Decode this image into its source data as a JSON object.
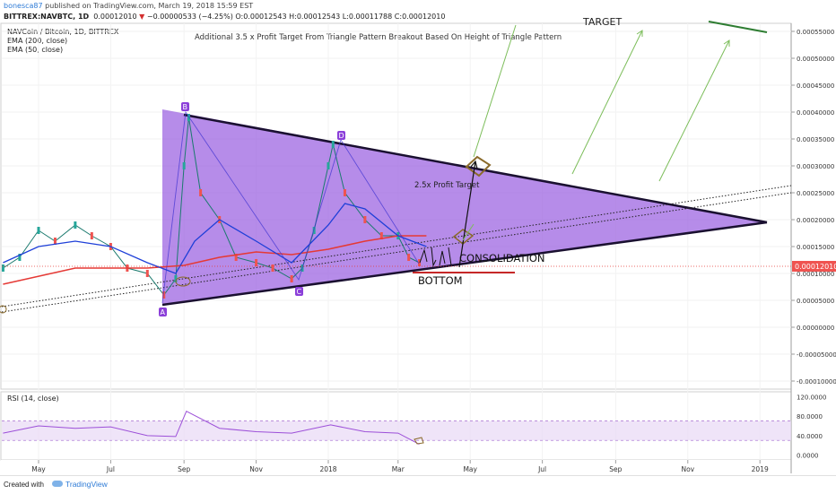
{
  "header": {
    "user": "bonesca87",
    "published": " published on TradingView.com, March 19, 2018 15:59 EST",
    "symbol": "BITTREX:NAVBTC, 1D",
    "last": "0.00012010",
    "arrow": "▼",
    "change": "−0.00000533 (−4.25%)",
    "open": "O:0.00012543",
    "high": "H:0.00012543",
    "low": "L:0.00011788",
    "close": "C:0.00012010"
  },
  "legend": {
    "title": "NAVCoin / Bitcoin, 1D, BITTREX",
    "ema200": "EMA (200, close)",
    "ema50": "EMA (50, close)"
  },
  "chart_data": {
    "type": "line",
    "title": "Additional 3.5 x Profit Target From Triangle Pattern Breakout Based On Height of Triangle Pattern",
    "x_labels": [
      "May",
      "Jul",
      "Sep",
      "Nov",
      "2018",
      "Mar",
      "May",
      "Jul",
      "Sep",
      "Nov",
      "2019"
    ],
    "y_ticks": [
      "0.00055000",
      "0.00050000",
      "0.00045000",
      "0.00040000",
      "0.00035000",
      "0.00030000",
      "0.00025000",
      "0.00020000",
      "0.00015000",
      "0.00010000",
      "0.00005000",
      "0.00000000",
      "-0.00005000",
      "-0.00010000"
    ],
    "ylim": [
      -0.000115,
      0.000565
    ],
    "last_price_label": "0.00012010",
    "series": [
      {
        "name": "NAVBTC close",
        "color": "#26a69a",
        "x": [
          "2017-04-01",
          "2017-04-15",
          "2017-05-01",
          "2017-05-15",
          "2017-06-01",
          "2017-06-15",
          "2017-07-01",
          "2017-07-15",
          "2017-08-01",
          "2017-08-15",
          "2017-08-25",
          "2017-09-01",
          "2017-09-05",
          "2017-09-15",
          "2017-10-01",
          "2017-10-15",
          "2017-11-01",
          "2017-11-15",
          "2017-12-01",
          "2017-12-10",
          "2017-12-20",
          "2018-01-01",
          "2018-01-05",
          "2018-01-15",
          "2018-02-01",
          "2018-02-15",
          "2018-03-01",
          "2018-03-10",
          "2018-03-19"
        ],
        "values": [
          0.00011,
          0.00013,
          0.00018,
          0.00016,
          0.00019,
          0.00017,
          0.00015,
          0.00011,
          0.0001,
          6e-05,
          9e-05,
          0.0003,
          0.00039,
          0.00025,
          0.0002,
          0.00013,
          0.00012,
          0.00011,
          9e-05,
          0.00011,
          0.00018,
          0.0003,
          0.00034,
          0.00025,
          0.0002,
          0.00017,
          0.00017,
          0.00013,
          0.00012
        ]
      },
      {
        "name": "EMA (50, close)",
        "color": "#1e3fd8",
        "x": [
          "2017-04-01",
          "2017-05-01",
          "2017-06-01",
          "2017-07-01",
          "2017-08-01",
          "2017-08-25",
          "2017-09-10",
          "2017-10-01",
          "2017-11-01",
          "2017-12-01",
          "2018-01-01",
          "2018-01-15",
          "2018-02-01",
          "2018-03-01",
          "2018-03-25"
        ],
        "values": [
          0.00012,
          0.00015,
          0.00016,
          0.00015,
          0.00012,
          0.0001,
          0.00016,
          0.0002,
          0.00016,
          0.00012,
          0.00019,
          0.00023,
          0.00022,
          0.00017,
          0.00015
        ]
      },
      {
        "name": "EMA (200, close)",
        "color": "#e53935",
        "x": [
          "2017-04-01",
          "2017-06-01",
          "2017-08-01",
          "2017-09-01",
          "2017-10-01",
          "2017-11-01",
          "2017-12-01",
          "2018-01-01",
          "2018-02-01",
          "2018-03-01",
          "2018-03-25"
        ],
        "values": [
          8e-05,
          0.00011,
          0.00011,
          0.000115,
          0.00013,
          0.00014,
          0.000135,
          0.000145,
          0.00016,
          0.00017,
          0.00017
        ]
      }
    ],
    "rsi": {
      "label": "RSI (14, close)",
      "y_ticks": [
        "120.0000",
        "80.0000",
        "40.0000",
        "0.0000"
      ],
      "band": [
        30,
        70
      ],
      "x": [
        "2017-04-01",
        "2017-05-01",
        "2017-06-01",
        "2017-07-01",
        "2017-08-01",
        "2017-08-25",
        "2017-09-03",
        "2017-10-01",
        "2017-11-01",
        "2017-12-01",
        "2018-01-03",
        "2018-02-01",
        "2018-03-01",
        "2018-03-19"
      ],
      "values": [
        45,
        60,
        55,
        58,
        40,
        38,
        90,
        55,
        48,
        45,
        62,
        48,
        45,
        22
      ]
    },
    "annotations": {
      "points": [
        "A",
        "B",
        "C",
        "D"
      ],
      "profit_target": "2.5x Profit Target",
      "consolidation": "CONSOLIDATION",
      "bottom": "BOTTOM",
      "target": "TARGET"
    }
  },
  "colors": {
    "triangle_fill": "#9a5fe0",
    "triangle_edge": "#1a1030",
    "point_badge": "#8b3fd9",
    "arrow_green": "#7cbd5a",
    "target_line": "#2e7d32",
    "bottom_line": "#c62828",
    "breakout_marker": "#8a6a2a"
  },
  "footer": {
    "created": "Created with",
    "brand": "TradingView"
  }
}
